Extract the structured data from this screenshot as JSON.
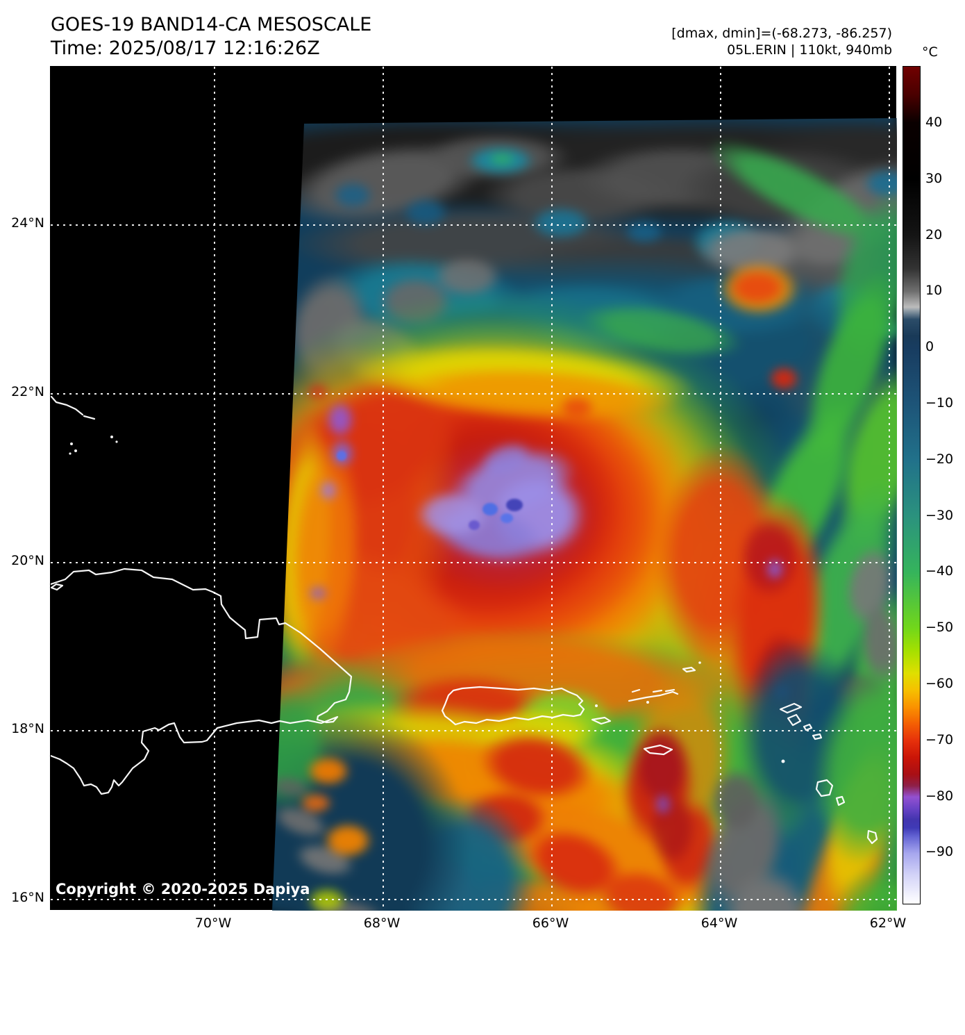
{
  "header": {
    "title_line1": "GOES-19 BAND14-CA MESOSCALE",
    "title_line2": "Time: 2025/08/17 12:16:26Z",
    "meta_line1": "[dmax, dmin]=(-68.273, -86.257)",
    "meta_line2": "05L.ERIN | 110kt, 940mb"
  },
  "colorbar": {
    "unit": "°C",
    "tick_labels": [
      "40",
      "30",
      "20",
      "10",
      "0",
      "−10",
      "−20",
      "−30",
      "−40",
      "−50",
      "−60",
      "−70",
      "−80",
      "−90"
    ],
    "tick_values": [
      40,
      30,
      20,
      10,
      0,
      -10,
      -20,
      -30,
      -40,
      -50,
      -60,
      -70,
      -80,
      -90
    ],
    "value_range": [
      50,
      -99
    ],
    "gradient_stops": [
      {
        "v": 50,
        "c": "#700000"
      },
      {
        "v": 45,
        "c": "#4a0000"
      },
      {
        "v": 40,
        "c": "#0a0000"
      },
      {
        "v": 30,
        "c": "#000000"
      },
      {
        "v": 20,
        "c": "#141414"
      },
      {
        "v": 14,
        "c": "#333333"
      },
      {
        "v": 10,
        "c": "#6f6f6f"
      },
      {
        "v": 8,
        "c": "#a6a6a6"
      },
      {
        "v": 7.2,
        "c": "#bcbcbc"
      },
      {
        "v": 6.4,
        "c": "#8494a0"
      },
      {
        "v": 5,
        "c": "#2b4c68"
      },
      {
        "v": 2,
        "c": "#193a58"
      },
      {
        "v": 0,
        "c": "#183c60"
      },
      {
        "v": -10,
        "c": "#1d5478"
      },
      {
        "v": -20,
        "c": "#21718a"
      },
      {
        "v": -30,
        "c": "#2b927e"
      },
      {
        "v": -40,
        "c": "#35b45c"
      },
      {
        "v": -50,
        "c": "#72d71a"
      },
      {
        "v": -54,
        "c": "#a5e000"
      },
      {
        "v": -58,
        "c": "#dfdf00"
      },
      {
        "v": -61,
        "c": "#f6c000"
      },
      {
        "v": -64,
        "c": "#fa9200"
      },
      {
        "v": -67,
        "c": "#f45f03"
      },
      {
        "v": -70,
        "c": "#e6300b"
      },
      {
        "v": -73,
        "c": "#ca1507"
      },
      {
        "v": -76,
        "c": "#a80f15"
      },
      {
        "v": -78,
        "c": "#8e2048"
      },
      {
        "v": -80,
        "c": "#9351d0"
      },
      {
        "v": -82,
        "c": "#6a43c6"
      },
      {
        "v": -84,
        "c": "#4335ae"
      },
      {
        "v": -85.5,
        "c": "#3f3ab6"
      },
      {
        "v": -87,
        "c": "#6363d3"
      },
      {
        "v": -90,
        "c": "#a6a6ee"
      },
      {
        "v": -94,
        "c": "#d4d4f8"
      },
      {
        "v": -99,
        "c": "#ffffff"
      }
    ]
  },
  "axes": {
    "lat_ticks": [
      "24°N",
      "22°N",
      "20°N",
      "18°N",
      "16°N"
    ],
    "lon_ticks": [
      "70°W",
      "68°W",
      "66°W",
      "64°W",
      "62°W"
    ]
  },
  "map": {
    "copyright": "Copyright © 2020-2025 Dapiya"
  }
}
